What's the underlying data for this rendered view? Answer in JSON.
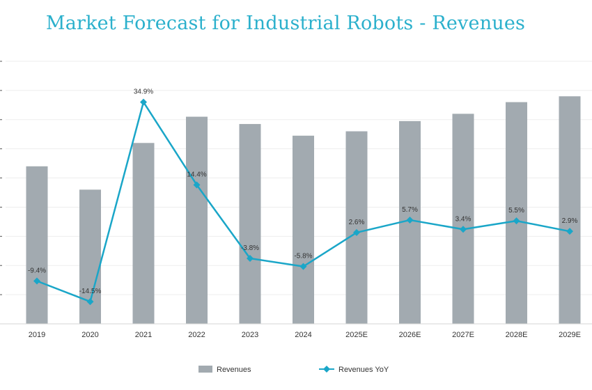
{
  "chart_data": {
    "type": "bar",
    "title": "Market Forecast for Industrial Robots - Revenues",
    "categories": [
      "2019",
      "2020",
      "2021",
      "2022",
      "2023",
      "2024",
      "2025E",
      "2026E",
      "2027E",
      "2028E",
      "2029E"
    ],
    "series": [
      {
        "name": "Revenues",
        "type": "bar",
        "values": [
          54,
          46,
          62,
          71,
          68.5,
          64.5,
          66,
          69.5,
          72,
          76,
          78
        ],
        "color": "#a2aab0"
      },
      {
        "name": "Revenues YoY",
        "type": "line",
        "values": [
          -9.4,
          -14.5,
          34.9,
          14.4,
          -3.8,
          -5.8,
          2.6,
          5.7,
          3.4,
          5.5,
          2.9
        ],
        "labels": [
          "-9.4%",
          "-14.5%",
          "34.9%",
          "14.4%",
          "-3.8%",
          "-5.8%",
          "2.6%",
          "5.7%",
          "3.4%",
          "5.5%",
          "2.9%"
        ],
        "color": "#1aa6c8"
      }
    ],
    "legend_position": "bottom-center",
    "grid": true
  }
}
